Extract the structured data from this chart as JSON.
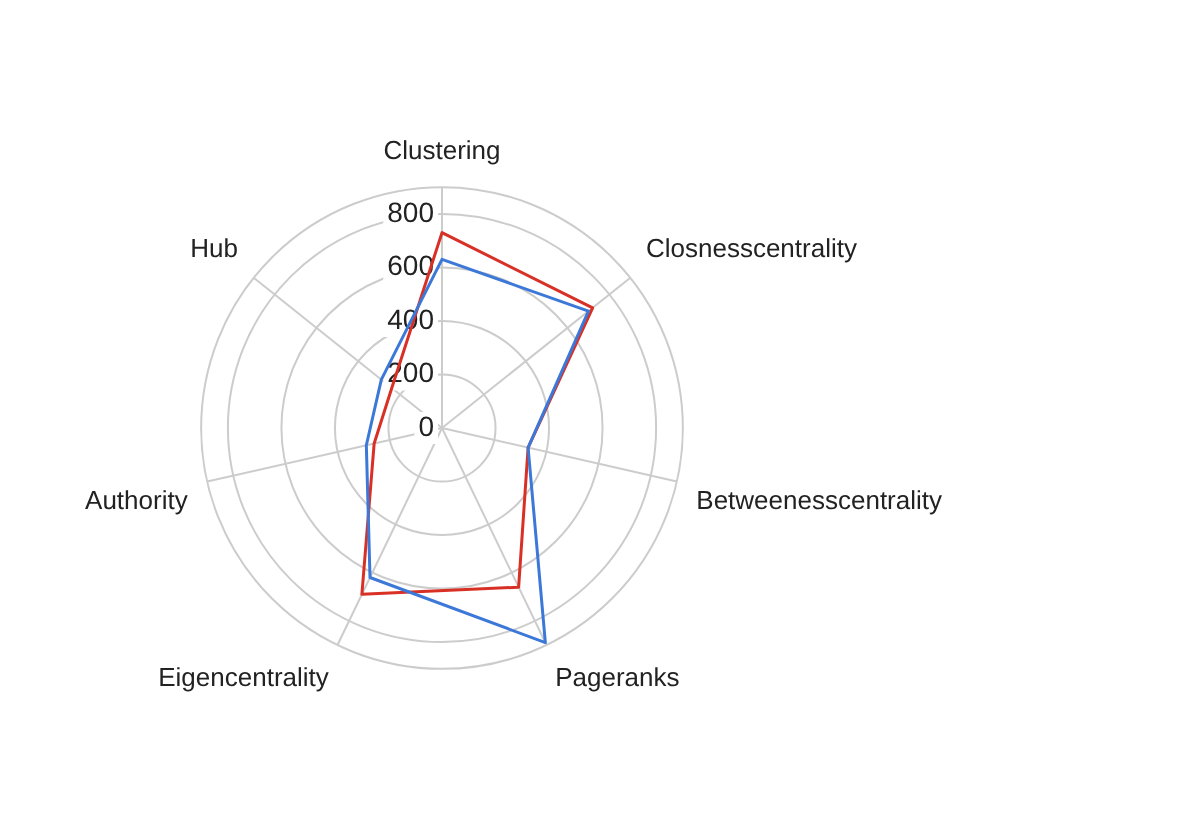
{
  "chart_data": {
    "type": "radar",
    "categories": [
      "Clustering",
      "Closnesscentrality",
      "Betweenesscentrality",
      "Pageranks",
      "Eigencentrality",
      "Authority",
      "Hub"
    ],
    "series": [
      {
        "color": "#3c78d8",
        "values": [
          630,
          700,
          330,
          890,
          620,
          290,
          290
        ]
      },
      {
        "color": "#d93025",
        "values": [
          730,
          720,
          330,
          660,
          690,
          260,
          240
        ]
      }
    ],
    "ylim": [
      0,
      900
    ],
    "yticks": [
      0,
      200,
      400,
      600,
      800
    ],
    "grid": true,
    "legend": false,
    "marker": "none",
    "line_style": "solid"
  }
}
